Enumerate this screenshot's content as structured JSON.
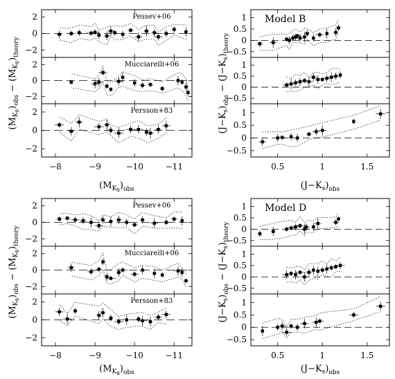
{
  "chart_data": [
    {
      "type": "scatter",
      "block": "top",
      "column": "left",
      "ylabel": "(M_Ks)obs − (M_Ks)theory",
      "xlabel": "(M_Ks)obs",
      "x_reversed": true,
      "xlim": [
        -7.65,
        -11.45
      ],
      "xticks": [
        -8,
        -9,
        -10,
        -11
      ],
      "panels": [
        {
          "label": "Pessev+06",
          "ylim": [
            -2.9,
            2.9
          ],
          "yticks": [
            -2,
            0,
            2
          ],
          "points": [
            [
              -8.1,
              -0.1
            ],
            [
              -8.4,
              0.0
            ],
            [
              -8.6,
              0.1
            ],
            [
              -8.9,
              0.05
            ],
            [
              -9.0,
              0.15
            ],
            [
              -9.1,
              -0.2
            ],
            [
              -9.3,
              -0.3
            ],
            [
              -9.4,
              0.3
            ],
            [
              -9.5,
              0.1
            ],
            [
              -9.7,
              -0.1
            ],
            [
              -9.9,
              0.4
            ],
            [
              -10.1,
              -0.4
            ],
            [
              -10.3,
              0.3
            ],
            [
              -10.5,
              0.1
            ],
            [
              -10.6,
              -0.4
            ],
            [
              -10.8,
              0.0
            ],
            [
              -11.0,
              0.5
            ],
            [
              -11.3,
              0.2
            ]
          ]
        },
        {
          "label": "Mucciarelli+06",
          "ylim": [
            -2.9,
            2.9
          ],
          "yticks": [
            -2,
            0,
            2
          ],
          "points": [
            [
              -8.4,
              -0.2
            ],
            [
              -9.0,
              -0.4
            ],
            [
              -9.1,
              -0.2
            ],
            [
              -9.2,
              1.0
            ],
            [
              -9.3,
              -0.7
            ],
            [
              -9.4,
              -1.1
            ],
            [
              -9.6,
              -0.1
            ],
            [
              -9.7,
              0.4
            ],
            [
              -10.0,
              -0.3
            ],
            [
              -10.2,
              -0.6
            ],
            [
              -10.4,
              -0.5
            ],
            [
              -10.7,
              -1.0
            ],
            [
              -11.1,
              0.0
            ],
            [
              -11.2,
              -0.2
            ],
            [
              -11.3,
              -0.8
            ],
            [
              -11.35,
              -1.5
            ]
          ]
        },
        {
          "label": "Persson+83",
          "ylim": [
            -2.9,
            2.9
          ],
          "yticks": [
            -2,
            0,
            2
          ],
          "points": [
            [
              -8.1,
              0.6
            ],
            [
              -8.4,
              -0.1
            ],
            [
              -8.6,
              0.9
            ],
            [
              -9.1,
              0.4
            ],
            [
              -9.3,
              0.6
            ],
            [
              -9.4,
              0.0
            ],
            [
              -9.6,
              -0.3
            ],
            [
              -9.9,
              0.1
            ],
            [
              -10.1,
              0.1
            ],
            [
              -10.3,
              -0.2
            ],
            [
              -10.4,
              -0.3
            ],
            [
              -10.6,
              0.1
            ],
            [
              -10.8,
              0.5
            ]
          ]
        }
      ]
    },
    {
      "type": "scatter",
      "block": "top",
      "column": "right",
      "model": "Model B",
      "ylabel": "(J−Ks)obs − (J−Ks)theory",
      "xlabel": "(J−Ks)obs",
      "xlim": [
        0.2,
        1.75
      ],
      "xticks": [
        0.5,
        1,
        1.5
      ],
      "xtick_labels": [
        "0.5",
        "1",
        "1.5"
      ],
      "panels": [
        {
          "label": "",
          "ylim": [
            -0.75,
            1.35
          ],
          "yticks": [
            -0.5,
            0,
            0.5,
            1
          ],
          "ytick_labels": [
            "−0.5",
            "0",
            "0.5",
            "1"
          ],
          "points": [
            [
              0.3,
              -0.15
            ],
            [
              0.45,
              -0.1
            ],
            [
              0.6,
              0.05
            ],
            [
              0.63,
              0.0
            ],
            [
              0.67,
              0.1
            ],
            [
              0.7,
              0.15
            ],
            [
              0.72,
              0.2
            ],
            [
              0.75,
              0.1
            ],
            [
              0.8,
              0.15
            ],
            [
              0.83,
              0.3
            ],
            [
              0.9,
              0.1
            ],
            [
              0.97,
              0.25
            ],
            [
              1.05,
              0.3
            ],
            [
              1.15,
              0.35
            ],
            [
              1.18,
              0.55
            ]
          ]
        },
        {
          "label": "",
          "ylim": [
            -0.75,
            1.35
          ],
          "yticks": [
            -0.5,
            0,
            0.5,
            1
          ],
          "ytick_labels": [
            "−0.5",
            "0",
            "0.5",
            "1"
          ],
          "points": [
            [
              0.6,
              0.1
            ],
            [
              0.65,
              0.15
            ],
            [
              0.7,
              0.2
            ],
            [
              0.75,
              0.25
            ],
            [
              0.8,
              0.3
            ],
            [
              0.85,
              0.25
            ],
            [
              0.9,
              0.45
            ],
            [
              0.95,
              0.35
            ],
            [
              1.0,
              0.35
            ],
            [
              1.05,
              0.4
            ],
            [
              1.1,
              0.45
            ],
            [
              1.15,
              0.5
            ],
            [
              1.2,
              0.55
            ]
          ]
        },
        {
          "label": "",
          "ylim": [
            -0.75,
            1.35
          ],
          "yticks": [
            -0.5,
            0,
            0.5,
            1
          ],
          "ytick_labels": [
            "−0.5",
            "0",
            "0.5",
            "1"
          ],
          "points": [
            [
              0.33,
              -0.15
            ],
            [
              0.5,
              0.0
            ],
            [
              0.55,
              0.02
            ],
            [
              0.65,
              0.05
            ],
            [
              0.72,
              0.0
            ],
            [
              0.85,
              0.15
            ],
            [
              0.93,
              0.25
            ],
            [
              1.0,
              0.3
            ],
            [
              1.35,
              0.65
            ],
            [
              1.65,
              0.95
            ]
          ]
        }
      ]
    },
    {
      "type": "scatter",
      "block": "bottom",
      "column": "left",
      "ylabel": "(M_Ks)obs − (M_Ks)theory",
      "xlabel": "(M_Ks)obs",
      "x_reversed": true,
      "xlim": [
        -7.65,
        -11.45
      ],
      "xticks": [
        -8,
        -9,
        -10,
        -11
      ],
      "panels": [
        {
          "label": "Pessev+06",
          "ylim": [
            -2.9,
            2.9
          ],
          "yticks": [
            -2,
            0,
            2
          ],
          "points": [
            [
              -8.1,
              0.4
            ],
            [
              -8.3,
              0.5
            ],
            [
              -8.5,
              0.3
            ],
            [
              -8.7,
              0.2
            ],
            [
              -8.9,
              0.0
            ],
            [
              -9.1,
              -0.4
            ],
            [
              -9.2,
              0.3
            ],
            [
              -9.4,
              0.1
            ],
            [
              -9.6,
              0.3
            ],
            [
              -9.8,
              0.0
            ],
            [
              -10.0,
              -0.3
            ],
            [
              -10.2,
              0.3
            ],
            [
              -10.5,
              -0.1
            ],
            [
              -10.8,
              0.0
            ],
            [
              -11.0,
              0.4
            ],
            [
              -11.2,
              0.2
            ]
          ]
        },
        {
          "label": "Mucciarelli+06",
          "ylim": [
            -2.9,
            2.9
          ],
          "yticks": [
            -2,
            0,
            2
          ],
          "points": [
            [
              -8.4,
              0.3
            ],
            [
              -8.9,
              -0.2
            ],
            [
              -9.1,
              0.1
            ],
            [
              -9.2,
              1.0
            ],
            [
              -9.3,
              -0.8
            ],
            [
              -9.4,
              -1.0
            ],
            [
              -9.6,
              -0.3
            ],
            [
              -9.7,
              0.0
            ],
            [
              -10.0,
              -0.5
            ],
            [
              -10.2,
              0.0
            ],
            [
              -10.5,
              -0.4
            ],
            [
              -10.7,
              -0.6
            ],
            [
              -11.1,
              -0.1
            ],
            [
              -11.2,
              -0.3
            ],
            [
              -11.3,
              -1.3
            ]
          ]
        },
        {
          "label": "Persson+83",
          "ylim": [
            -2.9,
            2.9
          ],
          "yticks": [
            -2,
            0,
            2
          ],
          "points": [
            [
              -8.1,
              0.9
            ],
            [
              -8.3,
              0.1
            ],
            [
              -8.5,
              1.0
            ],
            [
              -9.1,
              0.5
            ],
            [
              -9.2,
              0.8
            ],
            [
              -9.4,
              0.2
            ],
            [
              -9.6,
              -0.2
            ],
            [
              -9.8,
              0.0
            ],
            [
              -10.1,
              0.1
            ],
            [
              -10.2,
              -0.1
            ],
            [
              -10.4,
              -0.2
            ],
            [
              -10.6,
              0.3
            ],
            [
              -10.8,
              0.6
            ]
          ]
        }
      ]
    },
    {
      "type": "scatter",
      "block": "bottom",
      "column": "right",
      "model": "Model D",
      "ylabel": "(J−Ks)obs − (J−Ks)theory",
      "xlabel": "(J−Ks)obs",
      "xlim": [
        0.2,
        1.75
      ],
      "xticks": [
        0.5,
        1,
        1.5
      ],
      "xtick_labels": [
        "0.5",
        "1",
        "1.5"
      ],
      "panels": [
        {
          "label": "",
          "ylim": [
            -0.75,
            1.35
          ],
          "yticks": [
            -0.5,
            0,
            0.5,
            1
          ],
          "ytick_labels": [
            "−0.5",
            "0",
            "0.5",
            "1"
          ],
          "points": [
            [
              0.3,
              -0.2
            ],
            [
              0.45,
              -0.1
            ],
            [
              0.6,
              0.0
            ],
            [
              0.65,
              0.05
            ],
            [
              0.7,
              0.1
            ],
            [
              0.75,
              0.15
            ],
            [
              0.8,
              0.0
            ],
            [
              0.82,
              0.1
            ],
            [
              0.9,
              0.1
            ],
            [
              0.95,
              0.25
            ],
            [
              1.15,
              0.3
            ],
            [
              1.18,
              0.45
            ]
          ]
        },
        {
          "label": "",
          "ylim": [
            -0.75,
            1.35
          ],
          "yticks": [
            -0.5,
            0,
            0.5,
            1
          ],
          "ytick_labels": [
            "−0.5",
            "0",
            "0.5",
            "1"
          ],
          "points": [
            [
              0.6,
              0.1
            ],
            [
              0.65,
              0.15
            ],
            [
              0.7,
              0.1
            ],
            [
              0.75,
              0.2
            ],
            [
              0.8,
              0.0
            ],
            [
              0.85,
              0.2
            ],
            [
              0.9,
              0.3
            ],
            [
              0.95,
              0.25
            ],
            [
              1.0,
              0.3
            ],
            [
              1.05,
              0.35
            ],
            [
              1.1,
              0.4
            ],
            [
              1.15,
              0.45
            ],
            [
              1.2,
              0.5
            ]
          ]
        },
        {
          "label": "",
          "ylim": [
            -0.75,
            1.35
          ],
          "yticks": [
            -0.5,
            0,
            0.5,
            1
          ],
          "ytick_labels": [
            "−0.5",
            "0",
            "0.5",
            "1"
          ],
          "points": [
            [
              0.33,
              -0.15
            ],
            [
              0.5,
              0.0
            ],
            [
              0.55,
              0.05
            ],
            [
              0.6,
              -0.2
            ],
            [
              0.65,
              0.05
            ],
            [
              0.72,
              0.0
            ],
            [
              0.8,
              0.15
            ],
            [
              0.93,
              0.2
            ],
            [
              0.97,
              0.25
            ],
            [
              1.35,
              0.5
            ],
            [
              1.65,
              0.85
            ]
          ]
        }
      ]
    }
  ]
}
